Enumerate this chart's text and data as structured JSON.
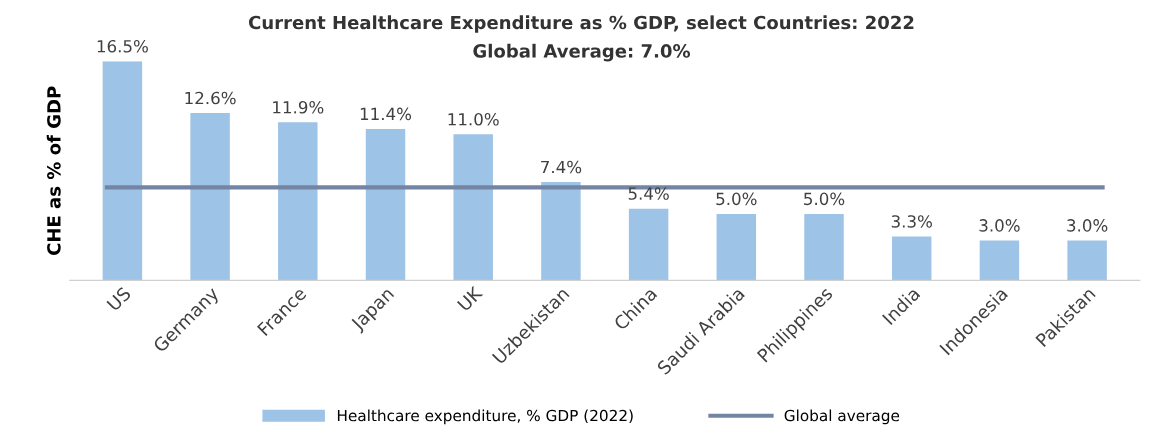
{
  "chart_data": {
    "type": "bar",
    "title": "Current Healthcare Expenditure as % GDP, select Countries: 2022",
    "subtitle": "Global Average: 7.0%",
    "ylabel": "CHE as % of GDP",
    "categories": [
      "US",
      "Germany",
      "France",
      "Japan",
      "UK",
      "Uzbekistan",
      "China",
      "Saudi Arabia",
      "Philippines",
      "India",
      "Indonesia",
      "Pakistan"
    ],
    "series": [
      {
        "name": "Healthcare expenditure, % GDP (2022)",
        "color": "#9dc3e6",
        "values": [
          16.5,
          12.6,
          11.9,
          11.4,
          11.0,
          7.4,
          5.4,
          5.0,
          5.0,
          3.3,
          3.0,
          3.0
        ],
        "value_labels": [
          "16.5%",
          "12.6%",
          "11.9%",
          "11.4%",
          "11.0%",
          "7.4%",
          "5.4%",
          "5.0%",
          "5.0%",
          "3.3%",
          "3.0%",
          "3.0%"
        ]
      }
    ],
    "ref_lines": [
      {
        "axis": "y",
        "value": 7.0,
        "label": "Global average",
        "color": "#7484a4"
      }
    ],
    "legend": "bottom",
    "grid": false
  }
}
